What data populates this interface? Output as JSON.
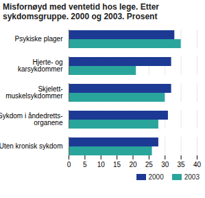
{
  "chart_data": {
    "type": "bar",
    "orientation": "horizontal",
    "title": "Misfornøyd med ventetid hos lege. Etter sykdomsgruppe. 2000 og 2003. Prosent",
    "categories": [
      "Psykiske plager",
      "Hjerte- og\nkarsykdommer",
      "Skjelett-\nmuskelsykdommer",
      "Sykdom i åndedretts-\norganene",
      "Uten kronisk sykdom"
    ],
    "series": [
      {
        "name": "2000",
        "color": "#1c3a94",
        "values": [
          33,
          32,
          32,
          31,
          28
        ]
      },
      {
        "name": "2003",
        "color": "#2aa59c",
        "values": [
          35,
          21,
          30,
          28,
          26
        ]
      }
    ],
    "xlim": [
      0,
      40
    ],
    "xticks": [
      0,
      5,
      10,
      15,
      20,
      25,
      30,
      35,
      40
    ],
    "grid": true,
    "legend": "bottom"
  }
}
